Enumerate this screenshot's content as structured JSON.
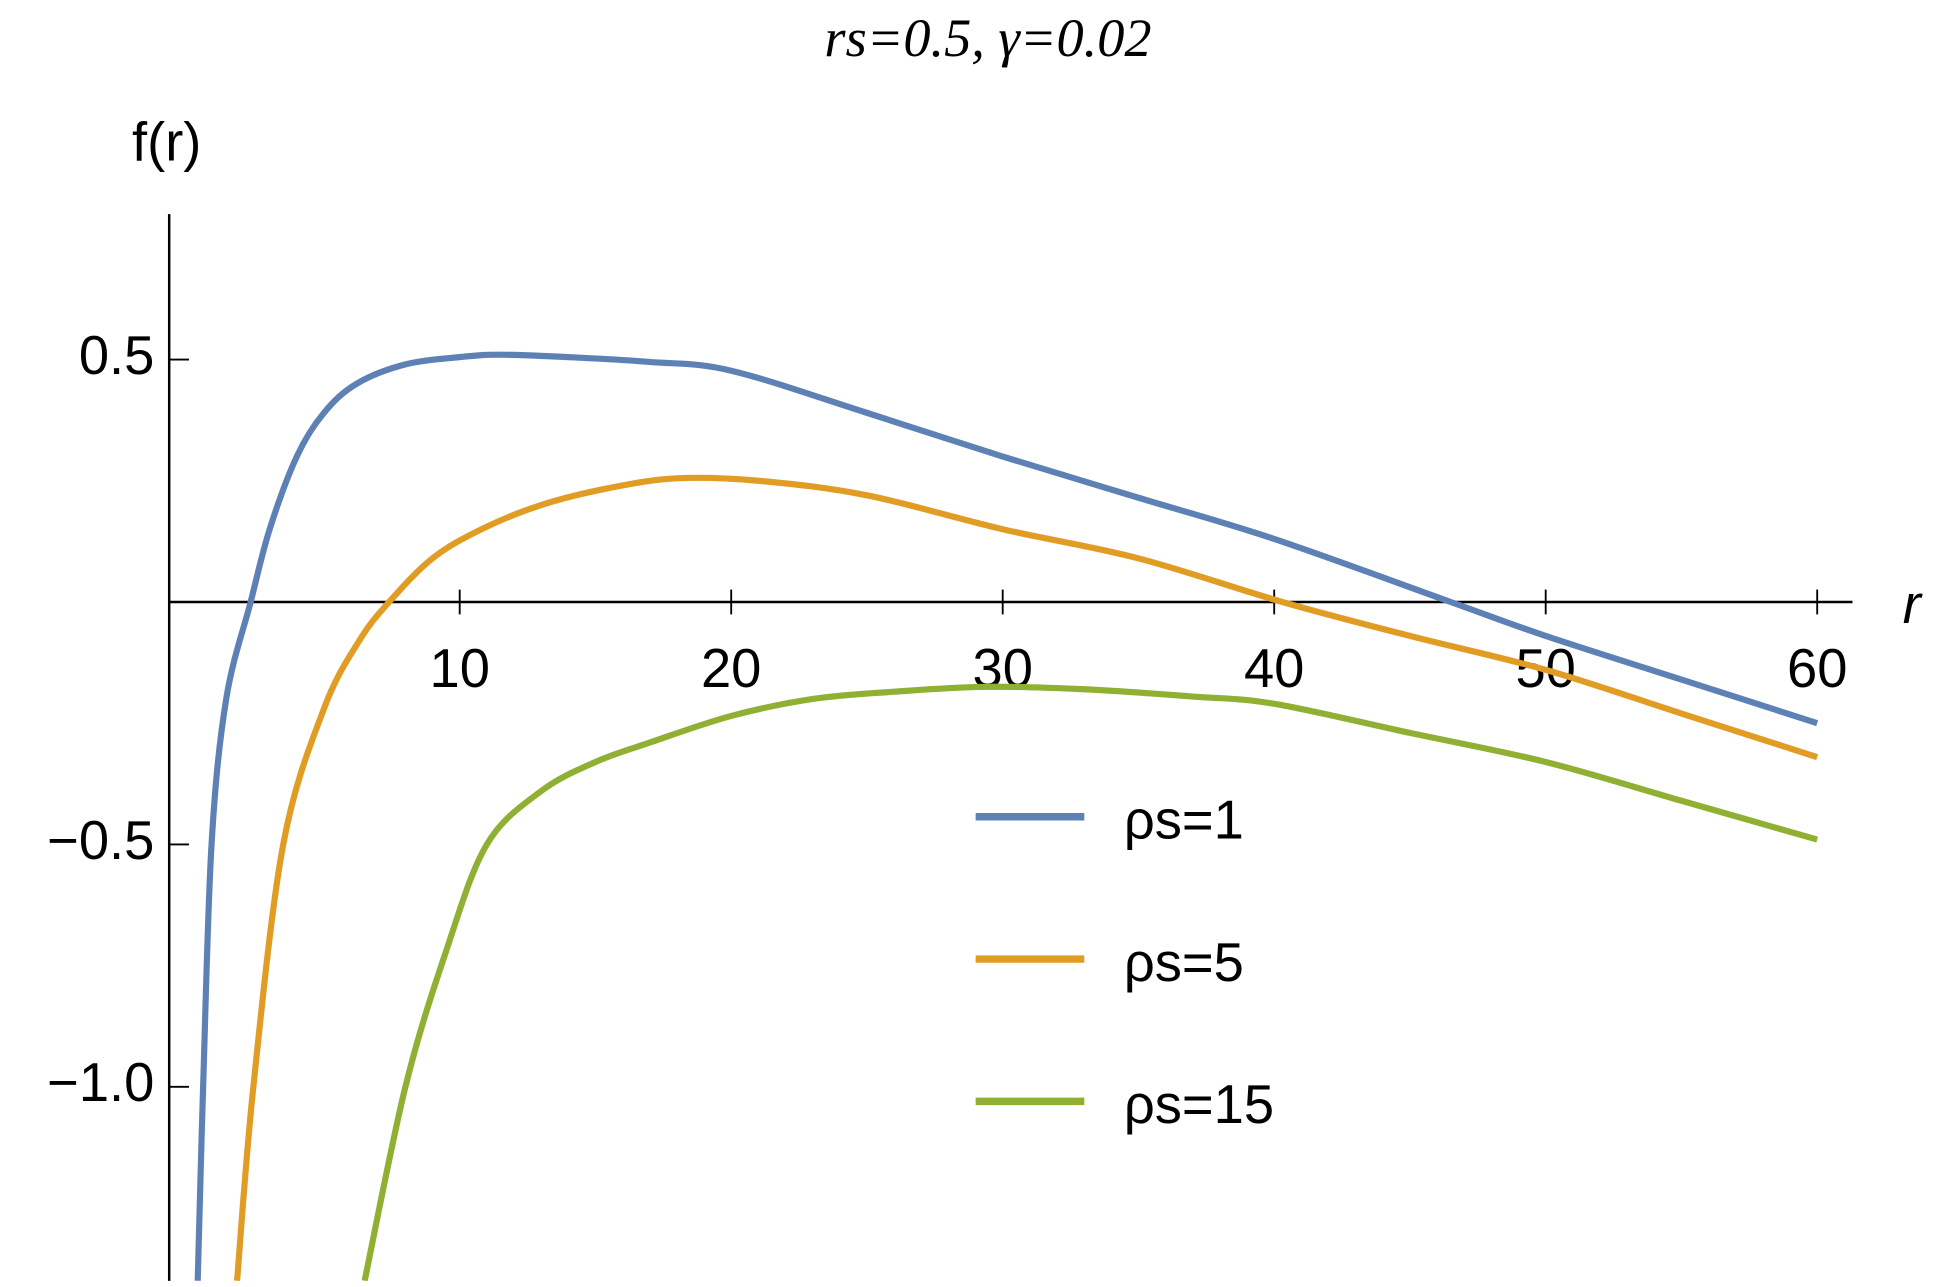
{
  "chart_data": {
    "type": "line",
    "title": "rs=0.5, γ=0.02",
    "xlabel": "r",
    "ylabel": "f(r)",
    "xlim": [
      -0.7,
      61.3
    ],
    "ylim": [
      -1.4,
      0.8
    ],
    "xticks": [
      10,
      20,
      30,
      40,
      50,
      60
    ],
    "yticks": [
      {
        "value": -1.0,
        "label": "−1.0"
      },
      {
        "value": -0.5,
        "label": "−0.5"
      },
      0.5
    ],
    "legend": "lower right",
    "series": [
      {
        "name": "ρs=1",
        "color": "#5e81b5",
        "x": [
          0.35,
          0.55,
          0.86,
          1.4,
          2.3,
          3,
          4,
          5,
          6.2,
          8,
          10,
          11.5,
          14,
          17,
          20,
          25,
          30,
          35,
          40,
          46.5,
          50,
          55,
          60
        ],
        "values": [
          -1.4,
          -1.0,
          -0.5,
          -0.2,
          0.0,
          0.15,
          0.3,
          0.39,
          0.45,
          0.49,
          0.505,
          0.51,
          0.505,
          0.495,
          0.477,
          0.39,
          0.3,
          0.215,
          0.13,
          0.0,
          -0.07,
          -0.16,
          -0.25
        ]
      },
      {
        "name": "ρs=5",
        "color": "#e19c24",
        "x": [
          1.8,
          2.4,
          3.5,
          5,
          6.3,
          7.4,
          9,
          10.8,
          13,
          15.5,
          18,
          21,
          25,
          30,
          35,
          40.3,
          45,
          50,
          55,
          60
        ],
        "values": [
          -1.4,
          -1.0,
          -0.5,
          -0.22,
          -0.08,
          0.0,
          0.09,
          0.15,
          0.2,
          0.235,
          0.255,
          0.25,
          0.22,
          0.15,
          0.09,
          0.0,
          -0.07,
          -0.14,
          -0.23,
          -0.32
        ]
      },
      {
        "name": "ρs=15",
        "color": "#8fb032",
        "x": [
          6.5,
          8,
          9.5,
          11,
          13,
          15,
          17,
          20,
          23,
          26,
          29.4,
          33,
          37,
          40,
          45,
          50,
          55,
          60
        ],
        "values": [
          -1.4,
          -1.0,
          -0.72,
          -0.5,
          -0.39,
          -0.33,
          -0.29,
          -0.235,
          -0.2,
          -0.185,
          -0.175,
          -0.18,
          -0.195,
          -0.21,
          -0.27,
          -0.33,
          -0.41,
          -0.49
        ]
      }
    ]
  }
}
